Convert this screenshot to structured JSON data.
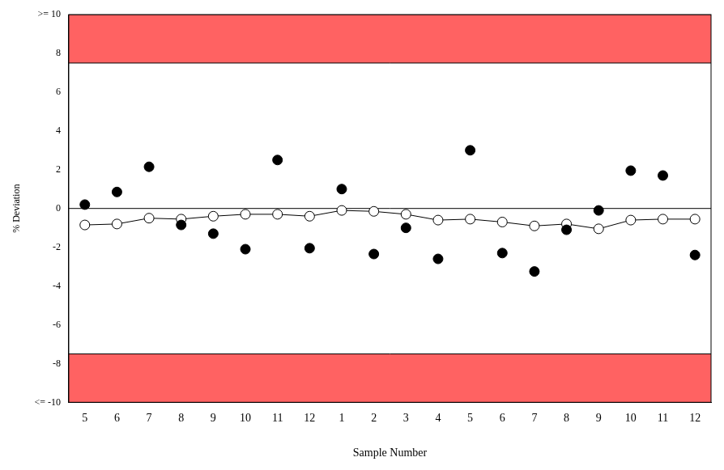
{
  "chart_data": {
    "type": "line",
    "x_label": "Sample Number",
    "y_label": "% Deviation",
    "categories": [
      "5",
      "6",
      "7",
      "8",
      "9",
      "10",
      "11",
      "12",
      "1",
      "2",
      "3",
      "4",
      "5",
      "6",
      "7",
      "8",
      "9",
      "10",
      "11",
      "12"
    ],
    "series": [
      {
        "color": "#000000",
        "marker": "open_circle",
        "line_style": "solid",
        "values": [
          -0.85,
          -0.8,
          -0.5,
          -0.55,
          -0.4,
          -0.3,
          -0.3,
          -0.4,
          -0.1,
          -0.15,
          -0.3,
          -0.6,
          -0.55,
          -0.7,
          -0.9,
          -0.8,
          -1.05,
          -0.6,
          -0.55,
          -0.55
        ]
      },
      {
        "color": "#000000",
        "marker": "circle",
        "line_style": "none",
        "values": [
          0.2,
          0.85,
          2.15,
          -0.85,
          -1.3,
          -2.1,
          2.5,
          -2.05,
          1.0,
          -2.35,
          -1.0,
          -2.6,
          3.0,
          -2.3,
          -3.25,
          -1.1,
          -0.1,
          1.95,
          1.7,
          -2.4
        ]
      }
    ],
    "ylim": [
      -10,
      10
    ],
    "yticks": [
      {
        "value": -10,
        "label": "<= -10"
      },
      -8,
      -6,
      -4,
      -2,
      0,
      2,
      4,
      6,
      8,
      {
        "value": 10,
        "label": ">= 10"
      }
    ],
    "bands": [
      {
        "from": 7.5,
        "to": 10,
        "color": "#ff6262"
      },
      {
        "from": -10,
        "to": -7.5,
        "color": "#ff6262"
      }
    ],
    "hlines": [
      0
    ],
    "grid": false
  }
}
